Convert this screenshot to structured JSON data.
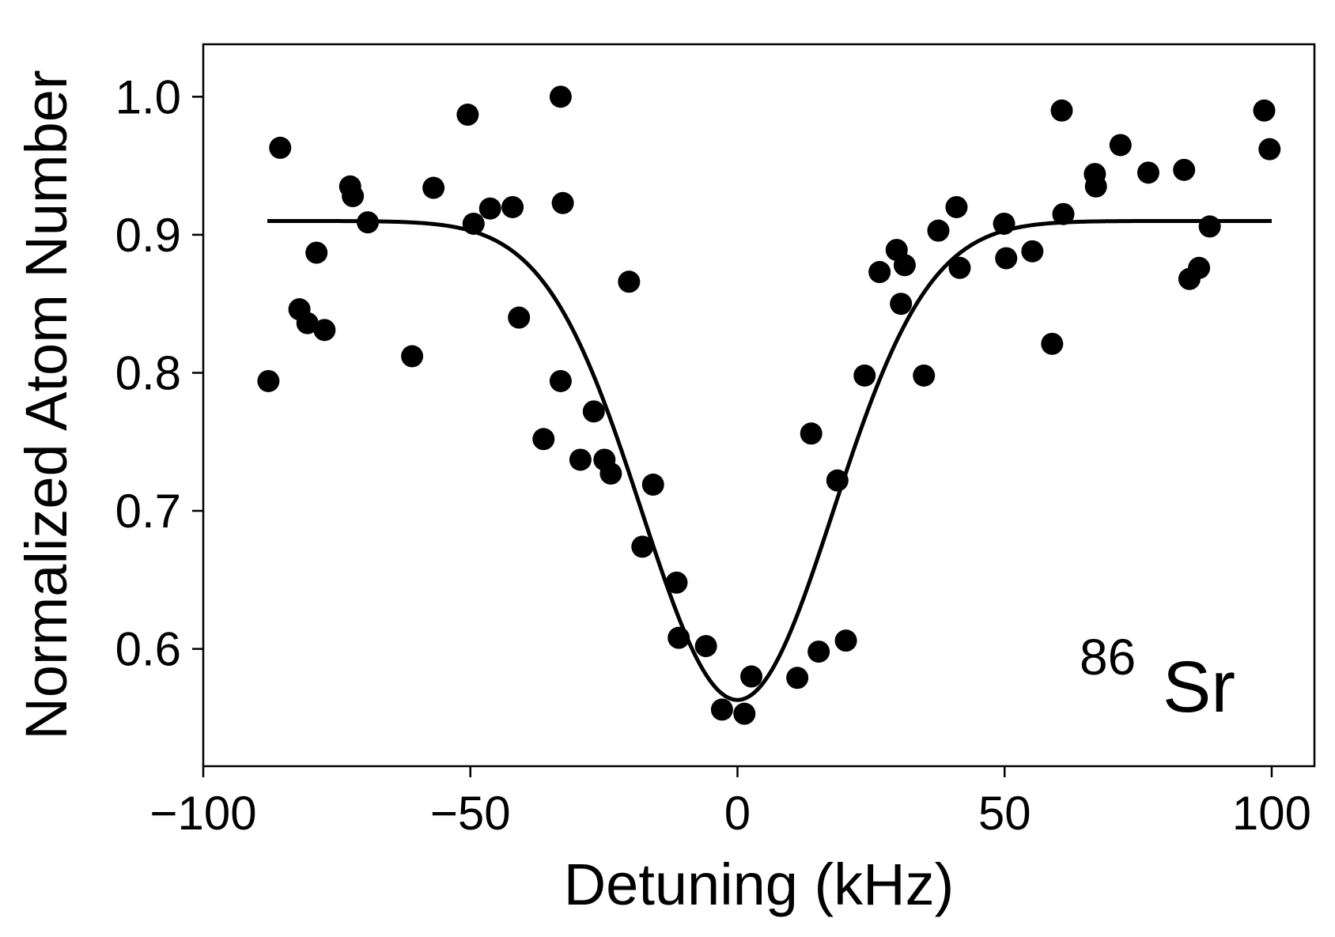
{
  "chart_data": {
    "type": "scatter",
    "title": "",
    "xlabel": "Detuning (kHz)",
    "ylabel": "Normalized Atom Number",
    "xlim": [
      -100,
      108
    ],
    "ylim": [
      0.515,
      1.038
    ],
    "grid": false,
    "legend": "none",
    "xticks": [
      -100,
      -50,
      0,
      50,
      100
    ],
    "xtick_labels": [
      "−100",
      "−50",
      "0",
      "50",
      "100"
    ],
    "yticks": [
      0.6,
      0.7,
      0.8,
      0.9,
      1.0
    ],
    "ytick_labels": [
      "0.6",
      "0.7",
      "0.8",
      "0.9",
      "1.0"
    ],
    "annotation": {
      "superscript": "86",
      "text": "Sr",
      "position": "bottom-right"
    },
    "colors": {
      "points": "#000000",
      "fit_line": "#000000",
      "axes": "#000000"
    },
    "series": [
      {
        "name": "data",
        "type": "scatter",
        "points": [
          [
            -87.8,
            0.794
          ],
          [
            -85.6,
            0.963
          ],
          [
            -82.0,
            0.846
          ],
          [
            -80.5,
            0.836
          ],
          [
            -78.8,
            0.887
          ],
          [
            -77.3,
            0.831
          ],
          [
            -72.5,
            0.935
          ],
          [
            -72.0,
            0.928
          ],
          [
            -69.2,
            0.909
          ],
          [
            -60.9,
            0.812
          ],
          [
            -56.9,
            0.934
          ],
          [
            -50.5,
            0.987
          ],
          [
            -49.4,
            0.908
          ],
          [
            -46.3,
            0.919
          ],
          [
            -42.1,
            0.92
          ],
          [
            -40.9,
            0.84
          ],
          [
            -36.3,
            0.752
          ],
          [
            -33.1,
            1.0
          ],
          [
            -33.1,
            0.794
          ],
          [
            -32.7,
            0.923
          ],
          [
            -29.4,
            0.737
          ],
          [
            -26.9,
            0.772
          ],
          [
            -24.9,
            0.737
          ],
          [
            -23.7,
            0.727
          ],
          [
            -20.3,
            0.866
          ],
          [
            -17.8,
            0.674
          ],
          [
            -15.8,
            0.719
          ],
          [
            -11.4,
            0.648
          ],
          [
            -11.0,
            0.608
          ],
          [
            -5.9,
            0.602
          ],
          [
            -2.9,
            0.556
          ],
          [
            1.3,
            0.553
          ],
          [
            2.6,
            0.58
          ],
          [
            11.2,
            0.579
          ],
          [
            13.8,
            0.756
          ],
          [
            15.2,
            0.598
          ],
          [
            18.7,
            0.722
          ],
          [
            20.3,
            0.606
          ],
          [
            23.8,
            0.798
          ],
          [
            26.6,
            0.873
          ],
          [
            29.8,
            0.889
          ],
          [
            30.6,
            0.85
          ],
          [
            31.3,
            0.878
          ],
          [
            34.9,
            0.798
          ],
          [
            37.6,
            0.903
          ],
          [
            41.0,
            0.92
          ],
          [
            41.6,
            0.876
          ],
          [
            49.9,
            0.908
          ],
          [
            50.3,
            0.883
          ],
          [
            55.2,
            0.888
          ],
          [
            58.9,
            0.821
          ],
          [
            60.7,
            0.99
          ],
          [
            61.0,
            0.915
          ],
          [
            66.9,
            0.944
          ],
          [
            67.1,
            0.935
          ],
          [
            71.7,
            0.965
          ],
          [
            76.9,
            0.945
          ],
          [
            83.6,
            0.947
          ],
          [
            84.6,
            0.868
          ],
          [
            86.4,
            0.876
          ],
          [
            88.4,
            0.906
          ],
          [
            98.6,
            0.99
          ],
          [
            99.6,
            0.962
          ]
        ]
      },
      {
        "name": "fit",
        "type": "line",
        "model": "gaussian",
        "baseline": 0.91,
        "depth": 0.347,
        "center": 0.0,
        "sigma": 17.9,
        "x_range": [
          -88,
          100
        ]
      }
    ]
  }
}
